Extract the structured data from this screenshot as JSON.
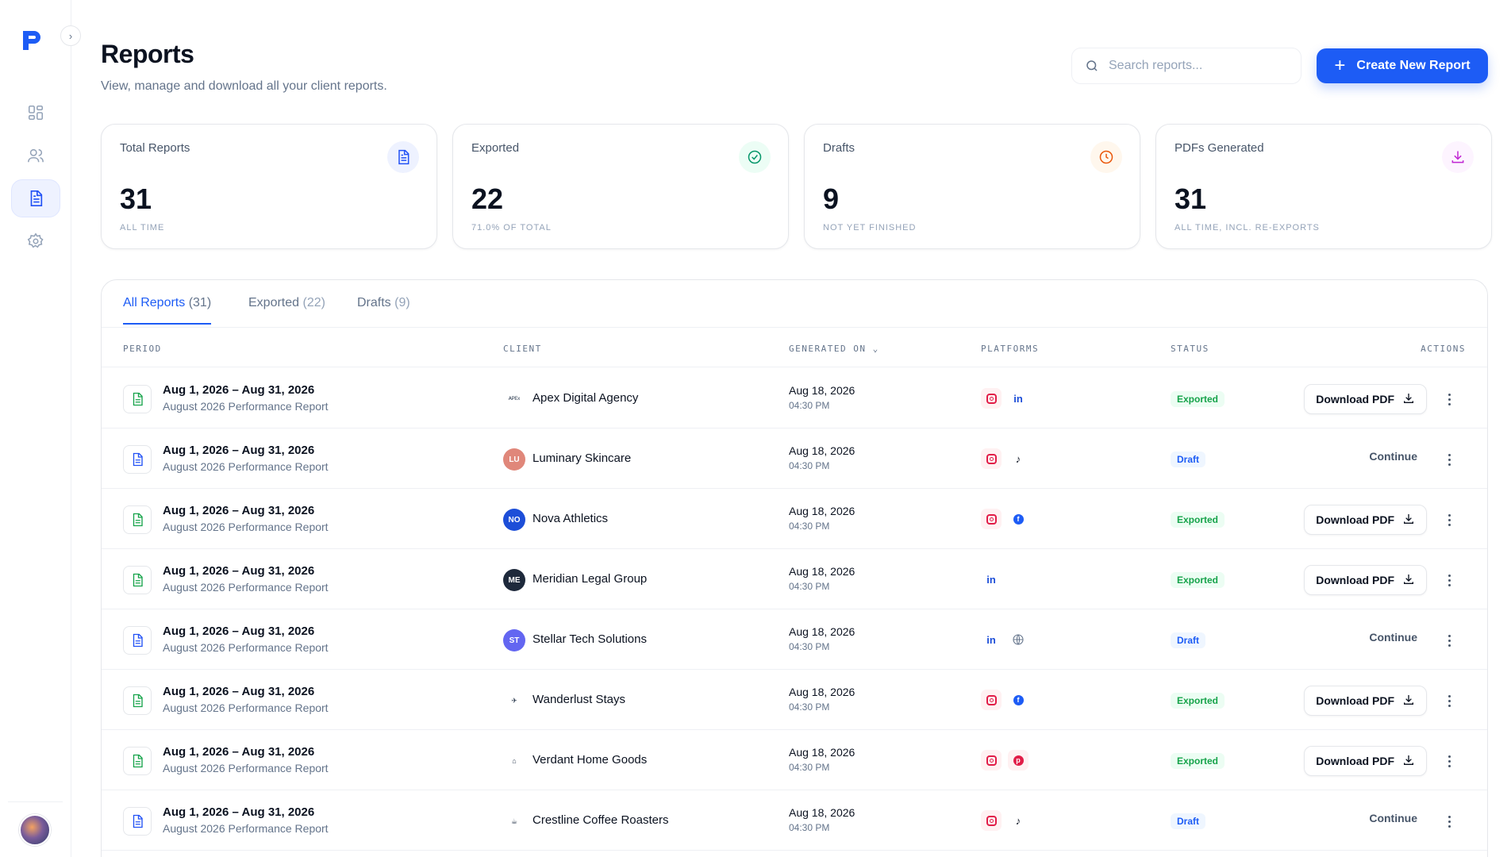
{
  "sidebar": {
    "items": [
      {
        "name": "dashboard-icon",
        "active": false
      },
      {
        "name": "users-icon",
        "active": false
      },
      {
        "name": "reports-icon",
        "active": true
      },
      {
        "name": "settings-icon",
        "active": false
      }
    ]
  },
  "header": {
    "title": "Reports",
    "subtitle": "View, manage and download all your client reports.",
    "search_placeholder": "Search reports...",
    "create_label": "Create New Report"
  },
  "stats": [
    {
      "label": "Total Reports",
      "value": "31",
      "sub": "ALL TIME",
      "icon": "document-icon",
      "color": "#2151f5",
      "bg": "#eef2ff"
    },
    {
      "label": "Exported",
      "value": "22",
      "sub": "71.0% OF TOTAL",
      "icon": "check-circle-icon",
      "color": "#059669",
      "bg": "#ecfdf5"
    },
    {
      "label": "Drafts",
      "value": "9",
      "sub": "NOT YET FINISHED",
      "icon": "clock-icon",
      "color": "#ea580c",
      "bg": "#fff7ed"
    },
    {
      "label": "PDFs Generated",
      "value": "31",
      "sub": "ALL TIME, INCL. RE-EXPORTS",
      "icon": "download-icon",
      "color": "#c026d3",
      "bg": "#fdf4ff"
    }
  ],
  "tabs": [
    {
      "label": "All Reports",
      "count": "(31)",
      "active": true
    },
    {
      "label": "Exported",
      "count": "(22)",
      "active": false
    },
    {
      "label": "Drafts",
      "count": "(9)",
      "active": false
    }
  ],
  "columns": {
    "period": "PERIOD",
    "client": "CLIENT",
    "generated": "GENERATED ON",
    "platforms": "PLATFORMS",
    "status": "STATUS",
    "actions": "ACTIONS"
  },
  "rows": [
    {
      "period": "Aug 1, 2026 – Aug 31, 2026",
      "report": "August 2026 Performance Report",
      "client": "Apex Digital Agency",
      "avatar": "ᴬᴾᴱˣ",
      "avatar_color": "logo",
      "date": "Aug 18, 2026",
      "time": "04:30 PM",
      "platforms": [
        "instagram",
        "linkedin"
      ],
      "status": "Exported",
      "action": "Download PDF"
    },
    {
      "period": "Aug 1, 2026 – Aug 31, 2026",
      "report": "August 2026 Performance Report",
      "client": "Luminary Skincare",
      "avatar": "LU",
      "avatar_color": "#e0877a",
      "date": "Aug 18, 2026",
      "time": "04:30 PM",
      "platforms": [
        "instagram",
        "tiktok"
      ],
      "status": "Draft",
      "action": "Continue"
    },
    {
      "period": "Aug 1, 2026 – Aug 31, 2026",
      "report": "August 2026 Performance Report",
      "client": "Nova Athletics",
      "avatar": "NO",
      "avatar_color": "#1d4ed8",
      "date": "Aug 18, 2026",
      "time": "04:30 PM",
      "platforms": [
        "instagram",
        "facebook"
      ],
      "status": "Exported",
      "action": "Download PDF"
    },
    {
      "period": "Aug 1, 2026 – Aug 31, 2026",
      "report": "August 2026 Performance Report",
      "client": "Meridian Legal Group",
      "avatar": "ME",
      "avatar_color": "#1e293b",
      "date": "Aug 18, 2026",
      "time": "04:30 PM",
      "platforms": [
        "linkedin"
      ],
      "status": "Exported",
      "action": "Download PDF"
    },
    {
      "period": "Aug 1, 2026 – Aug 31, 2026",
      "report": "August 2026 Performance Report",
      "client": "Stellar Tech Solutions",
      "avatar": "ST",
      "avatar_color": "#6366f1",
      "date": "Aug 18, 2026",
      "time": "04:30 PM",
      "platforms": [
        "linkedin",
        "globe"
      ],
      "status": "Draft",
      "action": "Continue"
    },
    {
      "period": "Aug 1, 2026 – Aug 31, 2026",
      "report": "August 2026 Performance Report",
      "client": "Wanderlust Stays",
      "avatar": "✈",
      "avatar_color": "logo",
      "date": "Aug 18, 2026",
      "time": "04:30 PM",
      "platforms": [
        "instagram",
        "facebook"
      ],
      "status": "Exported",
      "action": "Download PDF"
    },
    {
      "period": "Aug 1, 2026 – Aug 31, 2026",
      "report": "August 2026 Performance Report",
      "client": "Verdant Home Goods",
      "avatar": "⌂",
      "avatar_color": "logo",
      "date": "Aug 18, 2026",
      "time": "04:30 PM",
      "platforms": [
        "instagram",
        "pinterest"
      ],
      "status": "Exported",
      "action": "Download PDF"
    },
    {
      "period": "Aug 1, 2026 – Aug 31, 2026",
      "report": "August 2026 Performance Report",
      "client": "Crestline Coffee Roasters",
      "avatar": "☕",
      "avatar_color": "logo",
      "date": "Aug 18, 2026",
      "time": "04:30 PM",
      "platforms": [
        "instagram",
        "tiktok"
      ],
      "status": "Draft",
      "action": "Continue"
    }
  ]
}
